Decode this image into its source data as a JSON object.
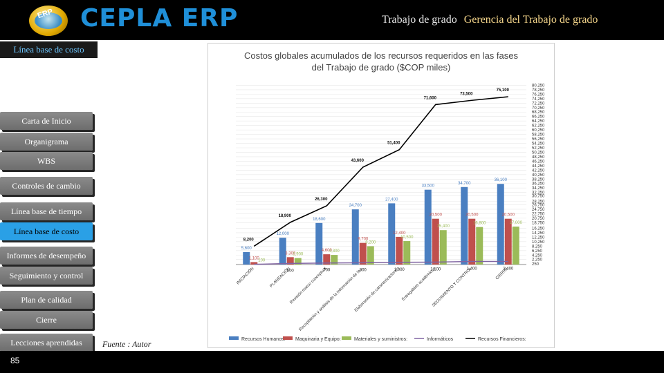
{
  "header": {
    "logo_badge": "ERP",
    "app_title": "CEPLA ERP",
    "nav_link_1": "Trabajo de grado",
    "nav_link_2": "Gerencia del Trabajo de grado"
  },
  "section_label": "Línea base de costo",
  "sidebar": {
    "items": [
      {
        "label": "Carta de Inicio"
      },
      {
        "label": "Organigrama"
      },
      {
        "label": "WBS"
      },
      {
        "label": "Controles de cambio"
      },
      {
        "label": "Línea base de tiempo"
      },
      {
        "label": "Línea base de costo"
      },
      {
        "label": "Informes de desempeño"
      },
      {
        "label": "Seguimiento y control"
      },
      {
        "label": "Plan de calidad"
      },
      {
        "label": "Cierre"
      },
      {
        "label": "Lecciones aprendidas"
      }
    ],
    "active_index": 5
  },
  "source_note": "Fuente : Autor",
  "page_number": "85",
  "colors": {
    "accent": "#2aa0e6",
    "title_blue": "#1f8fd8",
    "series_blue": "#4a7fc1",
    "series_red": "#c0504d",
    "series_green": "#9bbb59",
    "series_purple": "#8064a2",
    "line_black": "#000000"
  },
  "chart_data": {
    "type": "bar",
    "title": "Costos globales acumulados de los recursos requeridos en las fases del Trabajo de grado ($COP miles)",
    "categories": [
      "INICIACIÓN",
      "PLANEACIÓN",
      "Revisión marco conceptual",
      "Recopilación y análisis de la información de la...",
      "Elaboración de caracterizaciones",
      "Entregables académicos",
      "SEGUIMIENTO Y CONTROL",
      "CIERRE"
    ],
    "series": [
      {
        "name": "Recursos Humanos",
        "type": "bar",
        "values": [
          5600,
          12000,
          18600,
          24700,
          27400,
          33500,
          34700,
          36100
        ]
      },
      {
        "name": "Maquinaria y Equipo",
        "type": "bar",
        "values": [
          1100,
          3300,
          4600,
          9700,
          12400,
          20500,
          20500,
          20500
        ]
      },
      {
        "name": "Materiales y suministros",
        "type": "bar",
        "values": [
          100,
          2900,
          4300,
          8200,
          10500,
          15400,
          16800,
          17000
        ]
      },
      {
        "name": "Informáticos",
        "type": "line",
        "values": [
          100,
          500,
          700,
          800,
          1000,
          1100,
          1400,
          1400
        ]
      },
      {
        "name": "Recursos Financieros",
        "type": "line",
        "values": [
          8200,
          18900,
          26300,
          43600,
          51400,
          71600,
          73500,
          75100
        ]
      }
    ],
    "bar_labels": [
      [
        "5,600",
        "1,100",
        "100"
      ],
      [
        "12,000",
        "3,300",
        "2,900"
      ],
      [
        "18,600",
        "4,600",
        "4,300"
      ],
      [
        "24,700",
        "9,700",
        "8,200"
      ],
      [
        "27,400",
        "12,400",
        "10,500"
      ],
      [
        "33,500",
        "20,500",
        "15,400"
      ],
      [
        "34,700",
        "20,500",
        "16,800"
      ],
      [
        "36,100",
        "20,500",
        "17,000"
      ]
    ],
    "small_line_labels": [
      "",
      "500",
      "700",
      "800",
      "1,000",
      "1,100",
      "1,400",
      "1,400"
    ],
    "big_line_labels": [
      "8,200",
      "18,900",
      "26,300",
      "43,600",
      "51,400",
      "71,600",
      "73,500",
      "75,100"
    ],
    "legend_labels": [
      "Recursos Humanos:",
      "Maquinaria y Equipo:",
      "Materiales y suministros:",
      "Informáticos",
      "Recursos Financieros:"
    ],
    "y_ticks": [
      250,
      2250,
      4250,
      6250,
      8250,
      10250,
      12250,
      14250,
      16250,
      18750,
      20750,
      22750,
      24750,
      26750,
      28250,
      30750,
      32250,
      34250,
      36250,
      38250,
      40250,
      42250,
      44250,
      46250,
      48250,
      50250,
      52250,
      54250,
      56250,
      58250,
      60250,
      62250,
      64250,
      66250,
      68250,
      70250,
      72250,
      74250,
      76250,
      78250,
      80250
    ],
    "ylim": [
      0,
      81000
    ],
    "legend_position": "bottom"
  }
}
